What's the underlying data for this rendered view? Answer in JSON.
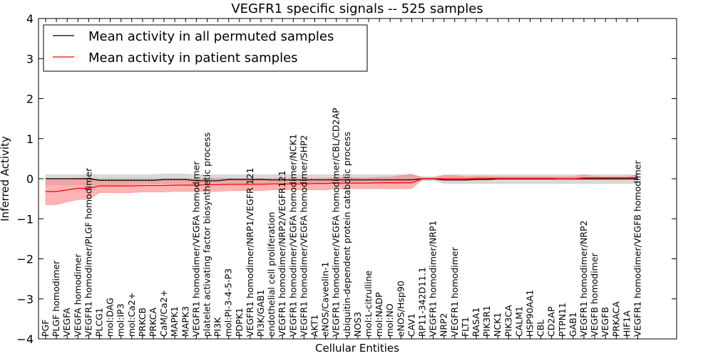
{
  "chart_data": {
    "type": "line",
    "title": "VEGFR1 specific signals -- 525 samples",
    "xlabel": "Cellular Entities",
    "ylabel": "Inferred Activity",
    "ylim": [
      -4,
      4
    ],
    "yticks": [
      4,
      3,
      2,
      1,
      0,
      -1,
      -2,
      -3,
      -4
    ],
    "ytick_labels": [
      "4",
      "3",
      "2",
      "1",
      "0",
      "−1",
      "−2",
      "−3",
      "−4"
    ],
    "grid": false,
    "legend_position": "top-left",
    "categories": [
      "PGF",
      "PLGF homodimer",
      "VEGFA",
      "VEGFA homodimer",
      "VEGFR1 homodimer/PLGF homodimer",
      "PLCG1",
      "mol:DAG",
      "mol:IP3",
      "mol:Ca2+",
      "PRKCB",
      "PRKCA",
      "CaM/Ca2+",
      "MAPK1",
      "MAPK3",
      "VEGFR1 homodimer/VEGFA homodimer",
      "platelet activating factor biosynthetic process",
      "PI3K",
      "mol:PI-3-4-5-P3",
      "PDPK1",
      "VEGFR1 homodimer/NRP1/VEGFR 121",
      "PI3K/GAB1",
      "endothelial cell proliferation",
      "VEGFR1 homodimer/NRP2/VEGFR121",
      "VEGFR1 homodimer/VEGFA homodimer/NCK1",
      "VEGFR1 homodimer/VEGFA homodimer/SHP2",
      "AKT1",
      "eNOS/Caveolin-1",
      "VEGFR1 homodimer/VEGFA homodimer/CBL/CD2AP",
      "ubiquitin-dependent protein catabolic process",
      "NOS3",
      "mol:L-citrulline",
      "mol:NADP",
      "mol:NO",
      "eNOS/Hsp90",
      "CAV1",
      "RP11-342D11.1",
      "VEGFR1 homodimer/NRP1",
      "NRP2",
      "VEGFR1 homodimer",
      "FLT1",
      "RASA1",
      "PIK3R1",
      "NCK1",
      "PIK3CA",
      "CALM1",
      "HSP90AA1",
      "CBL",
      "CD2AP",
      "PTPN11",
      "GAB1",
      "VEGFR1 homodimer/NRP2",
      "VEGFB homodimer",
      "VEGFB",
      "PRKACA",
      "HIF1A",
      "VEGFR1 homodimer/VEGFB homodimer"
    ],
    "series": [
      {
        "name": "Mean activity in all permuted samples",
        "color": "#000000",
        "band_color": "#c0c0c0",
        "values": [
          0.0,
          0.0,
          0.0,
          0.0,
          0.0,
          -0.04,
          -0.04,
          -0.04,
          -0.04,
          -0.04,
          -0.04,
          -0.02,
          -0.02,
          -0.02,
          -0.05,
          -0.05,
          -0.05,
          -0.02,
          -0.02,
          -0.02,
          -0.02,
          -0.03,
          -0.03,
          -0.03,
          -0.03,
          -0.03,
          -0.03,
          -0.03,
          -0.03,
          -0.03,
          -0.03,
          -0.03,
          -0.03,
          -0.03,
          -0.03,
          0.0,
          0.0,
          -0.03,
          -0.03,
          -0.03,
          -0.02,
          -0.02,
          0.0,
          0.0,
          0.0,
          0.0,
          0.0,
          0.0,
          0.0,
          0.0,
          0.0,
          0.0,
          0.0,
          0.0,
          0.0,
          0.0
        ],
        "lower": [
          -0.15,
          -0.15,
          -0.15,
          -0.15,
          -0.15,
          -0.15,
          -0.15,
          -0.15,
          -0.15,
          -0.12,
          -0.12,
          -0.12,
          -0.12,
          -0.12,
          -0.15,
          -0.15,
          -0.15,
          -0.15,
          -0.12,
          -0.12,
          -0.12,
          -0.12,
          -0.12,
          -0.12,
          -0.12,
          -0.12,
          -0.12,
          -0.12,
          -0.12,
          -0.12,
          -0.12,
          -0.12,
          -0.12,
          -0.12,
          -0.12,
          -0.05,
          -0.05,
          -0.12,
          -0.12,
          -0.12,
          -0.12,
          -0.12,
          -0.12,
          -0.12,
          -0.12,
          -0.12,
          -0.12,
          -0.12,
          -0.12,
          -0.12,
          -0.12,
          -0.12,
          -0.12,
          -0.12,
          -0.12,
          -0.12
        ],
        "upper": [
          0.1,
          0.1,
          0.1,
          0.1,
          0.1,
          0.1,
          0.1,
          0.1,
          0.1,
          0.1,
          0.1,
          0.12,
          0.12,
          0.12,
          0.1,
          0.1,
          0.1,
          0.1,
          0.1,
          0.1,
          0.1,
          0.1,
          0.1,
          0.1,
          0.1,
          0.1,
          0.1,
          0.1,
          0.1,
          0.1,
          0.1,
          0.1,
          0.1,
          0.1,
          0.1,
          0.05,
          0.05,
          0.1,
          0.1,
          0.1,
          0.1,
          0.1,
          0.1,
          0.1,
          0.1,
          0.1,
          0.1,
          0.1,
          0.1,
          0.1,
          0.1,
          0.1,
          0.1,
          0.1,
          0.1,
          0.1
        ]
      },
      {
        "name": "Mean activity in patient samples",
        "color": "#ff0000",
        "band_color": "#ff8080",
        "values": [
          -0.32,
          -0.32,
          -0.28,
          -0.24,
          -0.24,
          -0.18,
          -0.18,
          -0.18,
          -0.18,
          -0.17,
          -0.17,
          -0.17,
          -0.16,
          -0.16,
          -0.16,
          -0.15,
          -0.15,
          -0.14,
          -0.14,
          -0.14,
          -0.14,
          -0.13,
          -0.13,
          -0.13,
          -0.13,
          -0.12,
          -0.12,
          -0.11,
          -0.11,
          -0.11,
          -0.11,
          -0.1,
          -0.1,
          -0.1,
          -0.1,
          0.0,
          0.0,
          0.0,
          0.0,
          0.0,
          0.01,
          0.01,
          0.01,
          0.01,
          0.01,
          0.01,
          0.01,
          0.01,
          0.0,
          0.0,
          0.02,
          0.02,
          0.02,
          0.02,
          0.02,
          0.03
        ],
        "lower": [
          -0.65,
          -0.65,
          -0.58,
          -0.52,
          -0.52,
          -0.35,
          -0.35,
          -0.35,
          -0.35,
          -0.33,
          -0.33,
          -0.33,
          -0.32,
          -0.32,
          -0.32,
          -0.32,
          -0.32,
          -0.3,
          -0.3,
          -0.3,
          -0.3,
          -0.28,
          -0.28,
          -0.28,
          -0.28,
          -0.28,
          -0.28,
          -0.25,
          -0.25,
          -0.25,
          -0.25,
          -0.25,
          -0.25,
          -0.25,
          -0.25,
          -0.02,
          -0.02,
          -0.05,
          -0.05,
          -0.05,
          -0.03,
          -0.03,
          -0.03,
          -0.03,
          -0.03,
          -0.03,
          -0.03,
          -0.03,
          -0.03,
          -0.03,
          -0.03,
          -0.03,
          -0.03,
          -0.03,
          -0.03,
          -0.03
        ],
        "upper": [
          0.0,
          0.0,
          0.0,
          0.02,
          0.02,
          -0.02,
          -0.02,
          -0.02,
          -0.02,
          -0.02,
          -0.02,
          -0.02,
          -0.01,
          -0.01,
          -0.01,
          0.0,
          0.0,
          0.0,
          0.0,
          0.0,
          0.0,
          0.0,
          0.0,
          0.0,
          0.0,
          0.01,
          0.01,
          0.02,
          0.02,
          0.02,
          0.02,
          0.04,
          0.04,
          0.08,
          0.12,
          0.02,
          0.02,
          0.08,
          0.08,
          0.05,
          0.06,
          0.06,
          0.05,
          0.05,
          0.05,
          0.05,
          0.05,
          0.05,
          0.05,
          0.05,
          0.1,
          0.06,
          0.05,
          0.05,
          0.05,
          0.1
        ]
      }
    ]
  }
}
